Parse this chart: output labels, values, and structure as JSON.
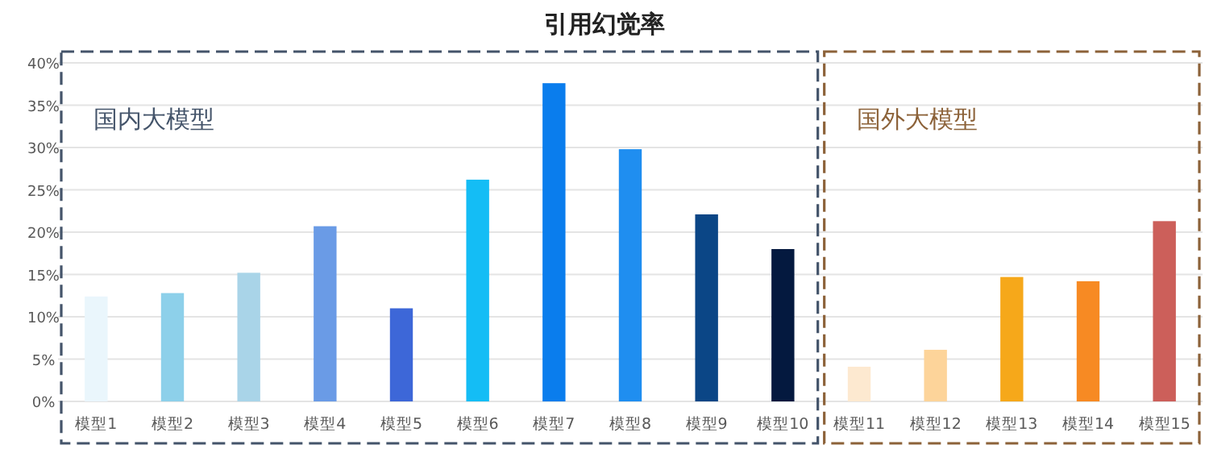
{
  "chart_data": {
    "type": "bar",
    "title": "引用幻觉率",
    "categories": [
      "模型1",
      "模型2",
      "模型3",
      "模型4",
      "模型5",
      "模型6",
      "模型7",
      "模型8",
      "模型9",
      "模型10",
      "模型11",
      "模型12",
      "模型13",
      "模型14",
      "模型15"
    ],
    "values": [
      12.4,
      12.8,
      15.2,
      20.7,
      11.0,
      26.2,
      37.6,
      29.8,
      22.1,
      18.0,
      4.1,
      6.1,
      14.7,
      14.2,
      21.3
    ],
    "colors": [
      "#eaf6fc",
      "#8dd0ea",
      "#a9d4e8",
      "#6a9be6",
      "#3d67d8",
      "#14bdf5",
      "#0a7ded",
      "#1f8ef0",
      "#0b4686",
      "#04193f",
      "#fde9d0",
      "#fdd49a",
      "#f6a81a",
      "#f78a23",
      "#cc5f5a"
    ],
    "ylim": [
      0,
      40
    ],
    "yticks": [
      {
        "value": 0,
        "label": "0%"
      },
      {
        "value": 5,
        "label": "5%"
      },
      {
        "value": 10,
        "label": "10%"
      },
      {
        "value": 15,
        "label": "15%"
      },
      {
        "value": 20,
        "label": "20%"
      },
      {
        "value": 25,
        "label": "25%"
      },
      {
        "value": 30,
        "label": "30%"
      },
      {
        "value": 35,
        "label": "35%"
      },
      {
        "value": 40,
        "label": "40%"
      }
    ],
    "grid": "y",
    "annotations": [
      "国内大模型",
      "国外大模型"
    ]
  }
}
